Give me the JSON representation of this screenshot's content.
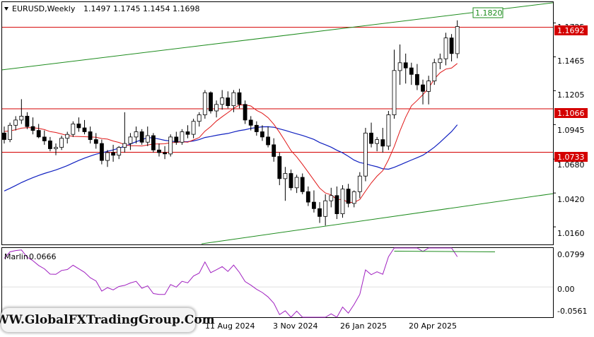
{
  "header": {
    "menu_icon": "triangle-down-icon",
    "symbol": "EURUSD,Weekly",
    "ohlc": "1.1497 1.1745 1.1454 1.1698"
  },
  "price_axis": {
    "ticks": [
      "1.1725",
      "1.1465",
      "1.1205",
      "1.0945",
      "1.0680",
      "1.0420",
      "1.0160"
    ],
    "ylim": [
      1.0025,
      1.1885
    ]
  },
  "level_tags": [
    {
      "id": "channel-top",
      "text": "1.1820",
      "style": "green-outline"
    },
    {
      "id": "current",
      "text": "1.1692",
      "style": "red-fill"
    },
    {
      "id": "resistance",
      "text": "1.1066",
      "style": "red-fill"
    },
    {
      "id": "support",
      "text": "1.0733",
      "style": "red-fill"
    }
  ],
  "horizontal_levels": [
    1.1692,
    1.1066,
    1.0733
  ],
  "indicator": {
    "name": "Marlin",
    "value": "0.0666",
    "ticks": [
      "0.0799",
      "0.00",
      "-0.0561"
    ],
    "ylim": [
      -0.067,
      0.086
    ]
  },
  "time_axis": {
    "ticks": [
      "11 Aug 2024",
      "3 Nov 2024",
      "26 Jan 2025",
      "20 Apr 2025"
    ]
  },
  "watermark": "WWW.GlobalFXTradingGroup.Com",
  "colors": {
    "bull": "#ffffff",
    "bear": "#000000",
    "level": "#d40000",
    "channel": "#1e8c1e",
    "ma_slow": "#1020c0",
    "ma_fast": "#e01818",
    "oscillator": "#a020c0",
    "osc_signal": "#1e8c1e"
  },
  "chart_data": {
    "type": "candlestick",
    "timeframe": "Weekly",
    "ohlc": [
      [
        1.088,
        1.093,
        1.08,
        1.083
      ],
      [
        1.083,
        1.096,
        1.081,
        1.094
      ],
      [
        1.094,
        1.101,
        1.09,
        1.098
      ],
      [
        1.098,
        1.114,
        1.095,
        1.101
      ],
      [
        1.101,
        1.104,
        1.091,
        1.093
      ],
      [
        1.093,
        1.1,
        1.087,
        1.09
      ],
      [
        1.09,
        1.095,
        1.084,
        1.085
      ],
      [
        1.085,
        1.09,
        1.079,
        1.082
      ],
      [
        1.082,
        1.085,
        1.074,
        1.076
      ],
      [
        1.076,
        1.08,
        1.071,
        1.077
      ],
      [
        1.077,
        1.086,
        1.075,
        1.084
      ],
      [
        1.084,
        1.089,
        1.08,
        1.087
      ],
      [
        1.087,
        1.097,
        1.085,
        1.095
      ],
      [
        1.095,
        1.1,
        1.089,
        1.092
      ],
      [
        1.092,
        1.098,
        1.087,
        1.089
      ],
      [
        1.089,
        1.093,
        1.08,
        1.083
      ],
      [
        1.083,
        1.088,
        1.076,
        1.08
      ],
      [
        1.08,
        1.083,
        1.064,
        1.067
      ],
      [
        1.067,
        1.075,
        1.062,
        1.073
      ],
      [
        1.073,
        1.079,
        1.066,
        1.071
      ],
      [
        1.071,
        1.078,
        1.068,
        1.077
      ],
      [
        1.077,
        1.104,
        1.073,
        1.08
      ],
      [
        1.08,
        1.088,
        1.075,
        1.085
      ],
      [
        1.085,
        1.093,
        1.08,
        1.089
      ],
      [
        1.089,
        1.091,
        1.079,
        1.081
      ],
      [
        1.081,
        1.093,
        1.078,
        1.086
      ],
      [
        1.086,
        1.088,
        1.073,
        1.075
      ],
      [
        1.075,
        1.08,
        1.07,
        1.073
      ],
      [
        1.073,
        1.078,
        1.068,
        1.072
      ],
      [
        1.072,
        1.087,
        1.07,
        1.085
      ],
      [
        1.085,
        1.089,
        1.079,
        1.081
      ],
      [
        1.081,
        1.091,
        1.079,
        1.089
      ],
      [
        1.089,
        1.094,
        1.084,
        1.087
      ],
      [
        1.087,
        1.099,
        1.084,
        1.097
      ],
      [
        1.097,
        1.104,
        1.093,
        1.102
      ],
      [
        1.102,
        1.121,
        1.099,
        1.119
      ],
      [
        1.119,
        1.12,
        1.103,
        1.105
      ],
      [
        1.105,
        1.113,
        1.1,
        1.11
      ],
      [
        1.11,
        1.121,
        1.106,
        1.115
      ],
      [
        1.115,
        1.12,
        1.107,
        1.109
      ],
      [
        1.109,
        1.121,
        1.104,
        1.119
      ],
      [
        1.119,
        1.122,
        1.107,
        1.11
      ],
      [
        1.11,
        1.113,
        1.095,
        1.098
      ],
      [
        1.098,
        1.101,
        1.09,
        1.094
      ],
      [
        1.094,
        1.097,
        1.086,
        1.089
      ],
      [
        1.089,
        1.094,
        1.082,
        1.085
      ],
      [
        1.085,
        1.093,
        1.077,
        1.079
      ],
      [
        1.079,
        1.084,
        1.066,
        1.07
      ],
      [
        1.07,
        1.073,
        1.048,
        1.053
      ],
      [
        1.053,
        1.062,
        1.036,
        1.057
      ],
      [
        1.057,
        1.06,
        1.044,
        1.046
      ],
      [
        1.046,
        1.056,
        1.042,
        1.054
      ],
      [
        1.054,
        1.057,
        1.041,
        1.043
      ],
      [
        1.043,
        1.047,
        1.032,
        1.035
      ],
      [
        1.035,
        1.044,
        1.027,
        1.03
      ],
      [
        1.03,
        1.035,
        1.019,
        1.024
      ],
      [
        1.024,
        1.041,
        1.017,
        1.036
      ],
      [
        1.036,
        1.046,
        1.031,
        1.04
      ],
      [
        1.04,
        1.047,
        1.022,
        1.026
      ],
      [
        1.026,
        1.048,
        1.023,
        1.045
      ],
      [
        1.045,
        1.049,
        1.031,
        1.034
      ],
      [
        1.034,
        1.044,
        1.031,
        1.043
      ],
      [
        1.043,
        1.058,
        1.038,
        1.055
      ],
      [
        1.055,
        1.092,
        1.051,
        1.088
      ],
      [
        1.088,
        1.096,
        1.077,
        1.08
      ],
      [
        1.08,
        1.085,
        1.074,
        1.083
      ],
      [
        1.083,
        1.092,
        1.073,
        1.078
      ],
      [
        1.078,
        1.105,
        1.075,
        1.102
      ],
      [
        1.102,
        1.152,
        1.099,
        1.136
      ],
      [
        1.136,
        1.156,
        1.125,
        1.142
      ],
      [
        1.142,
        1.149,
        1.126,
        1.138
      ],
      [
        1.138,
        1.142,
        1.125,
        1.133
      ],
      [
        1.133,
        1.141,
        1.121,
        1.125
      ],
      [
        1.125,
        1.129,
        1.11,
        1.12
      ],
      [
        1.12,
        1.132,
        1.11,
        1.128
      ],
      [
        1.128,
        1.145,
        1.125,
        1.142
      ],
      [
        1.142,
        1.149,
        1.137,
        1.145
      ],
      [
        1.145,
        1.165,
        1.14,
        1.161
      ],
      [
        1.161,
        1.164,
        1.143,
        1.149
      ],
      [
        1.149,
        1.1745,
        1.1454,
        1.1698
      ]
    ],
    "lines": [
      "channel-upper",
      "channel-lower",
      "ma-slow",
      "ma-fast",
      "marlin",
      "marlin-signal"
    ]
  }
}
